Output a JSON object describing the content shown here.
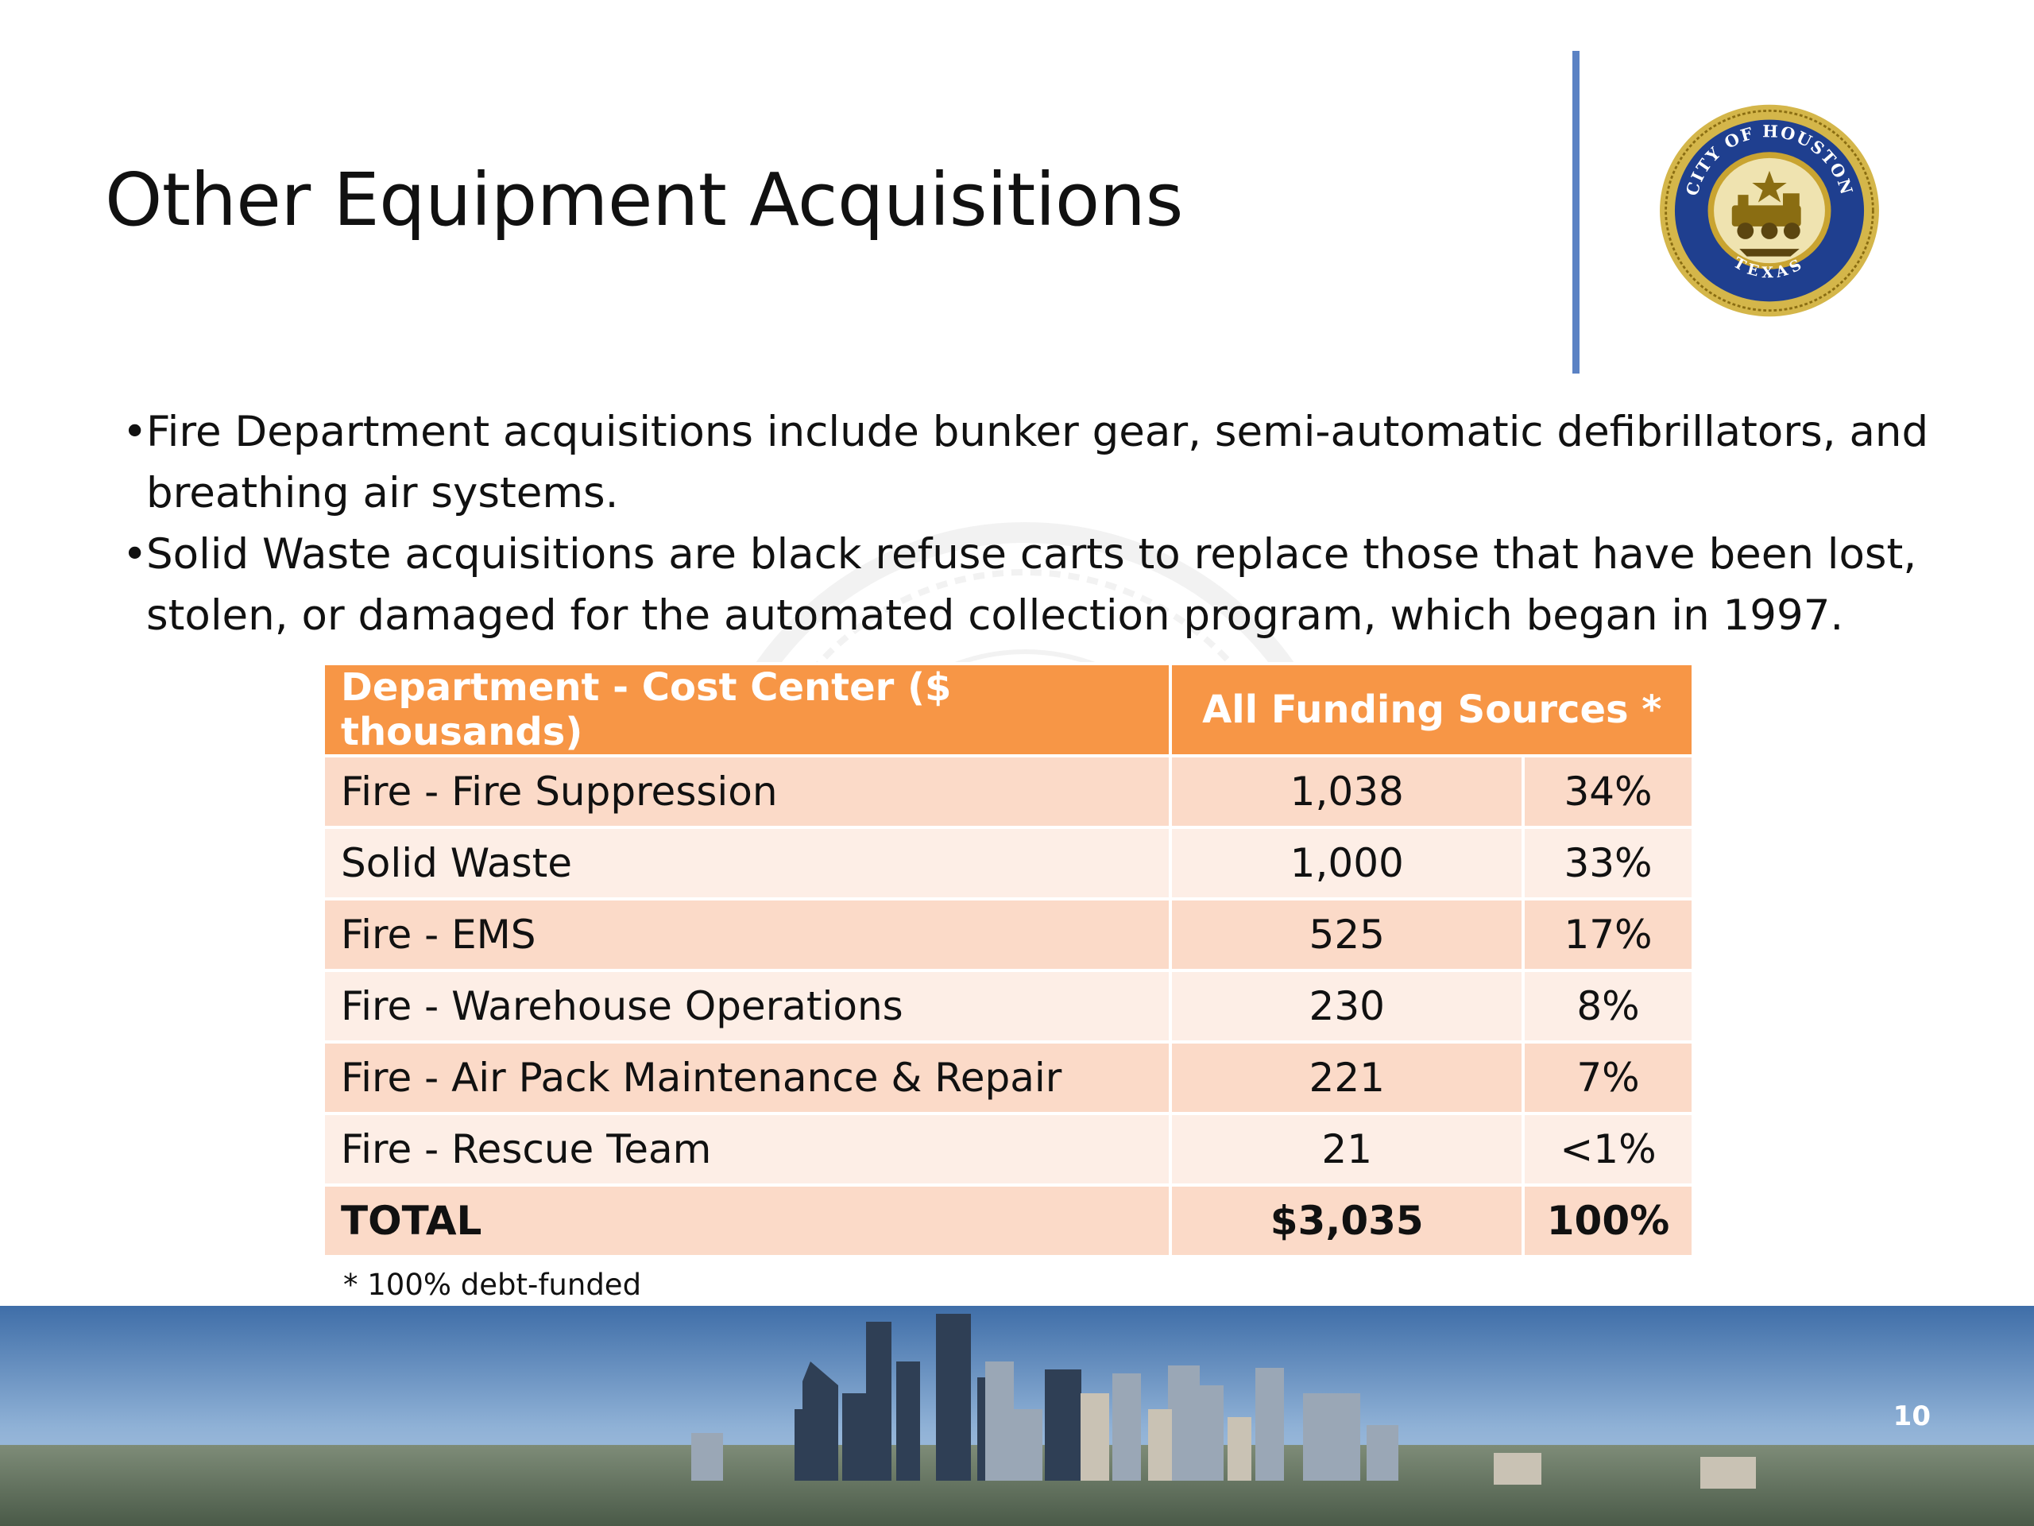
{
  "slide": {
    "title": "Other Equipment Acquisitions",
    "page_number": "10"
  },
  "logo": {
    "top_text": "CITY OF HOUSTON",
    "bottom_text": "TEXAS",
    "ring_color": "#c9a431",
    "band_color": "#1f3f8f"
  },
  "bullets": [
    {
      "marker": "•",
      "text": "Fire Department acquisitions include bunker gear, semi-automatic defibrillators, and breathing air systems."
    },
    {
      "marker": "•",
      "text": "Solid Waste acquisitions are black refuse carts to replace those that have been lost, stolen, or damaged for the automated collection program, which began in 1997."
    }
  ],
  "table": {
    "header": {
      "department": "Department - Cost Center ($ thousands)",
      "funding": "All Funding Sources *"
    },
    "rows": [
      {
        "name": "Fire - Fire Suppression",
        "amount": "1,038",
        "percent": "34%"
      },
      {
        "name": "Solid Waste",
        "amount": "1,000",
        "percent": "33%"
      },
      {
        "name": "Fire - EMS",
        "amount": "525",
        "percent": "17%"
      },
      {
        "name": "Fire - Warehouse Operations",
        "amount": "230",
        "percent": "8%"
      },
      {
        "name": "Fire - Air Pack Maintenance & Repair",
        "amount": "221",
        "percent": "7%"
      },
      {
        "name": "Fire - Rescue Team",
        "amount": "21",
        "percent": "<1%"
      }
    ],
    "total": {
      "name": "TOTAL",
      "amount": "$3,035",
      "percent": "100%"
    },
    "header_color": "#f79646",
    "row_color_odd": "#fbdac8",
    "row_color_even": "#fdeee6"
  },
  "footnote": "* 100% debt-funded"
}
